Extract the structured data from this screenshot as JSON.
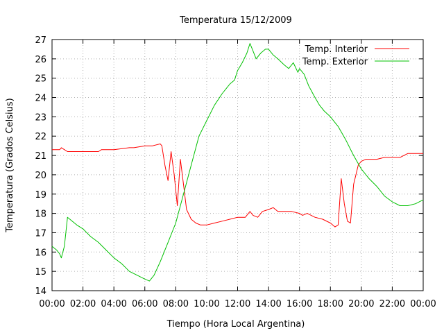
{
  "chart_data": {
    "type": "line",
    "title": "Temperatura 15/12/2009",
    "xlabel": "Tiempo (Hora Local Argentina)",
    "ylabel": "Temperatura (Grados Celsius)",
    "x_ticks": [
      "00:00",
      "02:00",
      "04:00",
      "06:00",
      "08:00",
      "10:00",
      "12:00",
      "14:00",
      "16:00",
      "18:00",
      "20:00",
      "22:00",
      "00:00"
    ],
    "xlim": [
      0,
      24
    ],
    "ylim": [
      14,
      27
    ],
    "y_ticks": [
      14,
      15,
      16,
      17,
      18,
      19,
      20,
      21,
      22,
      23,
      24,
      25,
      26,
      27
    ],
    "grid": true,
    "legend_position": "top-right",
    "series": [
      {
        "name": "Temp. Interior",
        "color": "#ff0000",
        "x": [
          0,
          0.5,
          0.6,
          0.8,
          1,
          2,
          3,
          3.2,
          4,
          5,
          5.3,
          6,
          6.5,
          7,
          7.1,
          7.3,
          7.5,
          7.7,
          7.9,
          8.1,
          8.3,
          8.5,
          8.7,
          9,
          9.3,
          9.6,
          10,
          10.5,
          11,
          11.5,
          12,
          12.5,
          12.8,
          13,
          13.3,
          13.6,
          14,
          14.3,
          14.6,
          15,
          15.5,
          16,
          16.2,
          16.5,
          17,
          17.5,
          18,
          18.3,
          18.5,
          18.7,
          18.9,
          19.1,
          19.3,
          19.5,
          19.8,
          20,
          20.3,
          20.6,
          21,
          21.5,
          22,
          22.5,
          23,
          24
        ],
        "values": [
          21.3,
          21.3,
          21.4,
          21.3,
          21.2,
          21.2,
          21.2,
          21.3,
          21.3,
          21.4,
          21.4,
          21.5,
          21.5,
          21.6,
          21.5,
          20.5,
          19.7,
          21.2,
          20.0,
          18.4,
          20.8,
          19.5,
          18.2,
          17.7,
          17.5,
          17.4,
          17.4,
          17.5,
          17.6,
          17.7,
          17.8,
          17.8,
          18.1,
          17.9,
          17.8,
          18.1,
          18.2,
          18.3,
          18.1,
          18.1,
          18.1,
          18.0,
          17.9,
          18.0,
          17.8,
          17.7,
          17.5,
          17.3,
          17.4,
          19.8,
          18.5,
          17.6,
          17.5,
          19.5,
          20.5,
          20.7,
          20.8,
          20.8,
          20.8,
          20.9,
          20.9,
          20.9,
          21.1,
          21.1
        ]
      },
      {
        "name": "Temp. Exterior",
        "color": "#00c000",
        "x": [
          0,
          0.3,
          0.5,
          0.6,
          0.8,
          1,
          1.3,
          1.6,
          2,
          2.5,
          3,
          3.5,
          4,
          4.5,
          5,
          5.5,
          6,
          6.3,
          6.6,
          7,
          7.5,
          8,
          8.5,
          9,
          9.5,
          10,
          10.5,
          11,
          11.5,
          11.8,
          12,
          12.3,
          12.6,
          12.8,
          13,
          13.2,
          13.5,
          13.8,
          14,
          14.3,
          14.6,
          15,
          15.3,
          15.6,
          15.9,
          16,
          16.3,
          16.6,
          17,
          17.3,
          17.6,
          18,
          18.5,
          19,
          19.5,
          20,
          20.5,
          21,
          21.5,
          22,
          22.5,
          23,
          23.5,
          24
        ],
        "values": [
          16.3,
          16.1,
          15.9,
          15.7,
          16.3,
          17.8,
          17.6,
          17.4,
          17.2,
          16.8,
          16.5,
          16.1,
          15.7,
          15.4,
          15.0,
          14.8,
          14.6,
          14.5,
          14.8,
          15.5,
          16.5,
          17.5,
          19.0,
          20.5,
          22.0,
          22.8,
          23.6,
          24.2,
          24.7,
          24.9,
          25.4,
          25.8,
          26.3,
          26.8,
          26.4,
          26.0,
          26.3,
          26.5,
          26.5,
          26.2,
          26.0,
          25.7,
          25.5,
          25.8,
          25.3,
          25.5,
          25.2,
          24.6,
          24.0,
          23.6,
          23.3,
          23.0,
          22.5,
          21.8,
          21.0,
          20.3,
          19.8,
          19.4,
          18.9,
          18.6,
          18.4,
          18.4,
          18.5,
          18.7
        ]
      }
    ]
  }
}
